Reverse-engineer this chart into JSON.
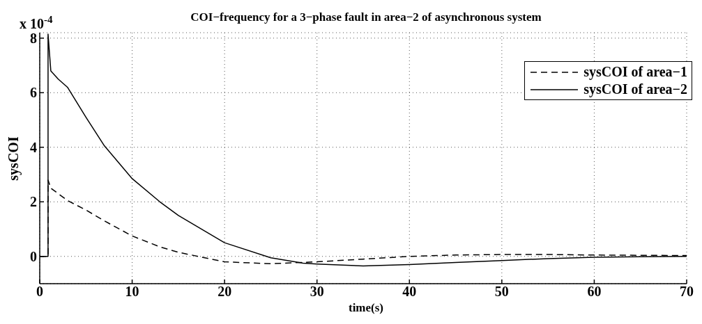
{
  "chart_data": {
    "type": "line",
    "title": "COI−frequency for a 3−phase fault in area−2 of asynchronous system",
    "xlabel": "time(s)",
    "ylabel": "sysCOI",
    "annotations": [
      "x 10$^{-4}$"
    ],
    "x": [
      0,
      0.9,
      0.9,
      1.2,
      2,
      3,
      5,
      7,
      10,
      13,
      15,
      20,
      25,
      28.5,
      30,
      35,
      40,
      45,
      50,
      55,
      60,
      65,
      70
    ],
    "series": [
      {
        "name": "sysCOI of area−1",
        "color": "#000000",
        "line_style": "dashed",
        "values": [
          0,
          0,
          2.8,
          2.5,
          2.3,
          2.05,
          1.7,
          1.3,
          0.75,
          0.35,
          0.15,
          -0.2,
          -0.27,
          -0.22,
          -0.2,
          -0.1,
          0,
          0.05,
          0.07,
          0.07,
          0.05,
          0.04,
          0.03
        ]
      },
      {
        "name": "sysCOI of area−2",
        "color": "#000000",
        "line_style": "solid",
        "values": [
          0,
          0,
          8.15,
          6.8,
          6.5,
          6.2,
          5.1,
          4.05,
          2.85,
          2.0,
          1.5,
          0.5,
          -0.05,
          -0.25,
          -0.28,
          -0.35,
          -0.3,
          -0.22,
          -0.15,
          -0.08,
          -0.03,
          -0.01,
          0
        ]
      }
    ],
    "xlim": [
      0,
      70
    ],
    "xticks": [
      0,
      10,
      20,
      30,
      40,
      50,
      60,
      70
    ],
    "ylim": [
      -1,
      8.2
    ],
    "yticks": [
      0,
      2,
      4,
      6,
      8
    ],
    "grid": true,
    "legend": "top right",
    "marker": "none"
  }
}
